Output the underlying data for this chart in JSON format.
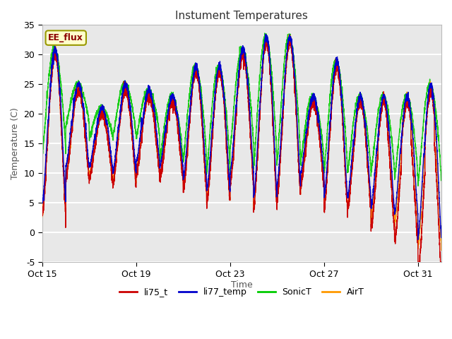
{
  "title": "Instument Temperatures",
  "xlabel": "Time",
  "ylabel": "Temperature (C)",
  "ylim": [
    -5,
    35
  ],
  "xlim": [
    0,
    17
  ],
  "plot_bg_color": "#e8e8e8",
  "grid_color": "white",
  "x_ticks": [
    0,
    4,
    8,
    12,
    16
  ],
  "x_tick_labels": [
    "Oct 15",
    "Oct 19",
    "Oct 23",
    "Oct 27",
    "Oct 31"
  ],
  "y_ticks": [
    -5,
    0,
    5,
    10,
    15,
    20,
    25,
    30,
    35
  ],
  "series_colors": {
    "li75_t": "#cc0000",
    "li77_temp": "#0000cc",
    "SonicT": "#00cc00",
    "AirT": "#ff9900"
  },
  "legend_label": "EE_flux",
  "legend_bg": "#ffffcc",
  "legend_border": "#999900",
  "day_peaks": [
    30,
    24,
    20,
    24,
    23,
    22,
    27,
    27,
    30,
    32,
    32,
    22,
    28,
    22,
    22,
    22,
    24,
    27
  ],
  "day_mins": [
    3,
    9,
    9,
    8,
    10,
    9,
    7,
    5,
    8,
    4,
    6,
    8,
    4,
    4,
    2,
    1,
    -3,
    -1
  ],
  "night_mins_sonic": [
    13,
    18,
    16,
    16,
    16,
    12,
    12,
    10,
    14,
    11,
    12,
    12,
    10,
    10,
    10,
    9,
    8,
    10
  ]
}
